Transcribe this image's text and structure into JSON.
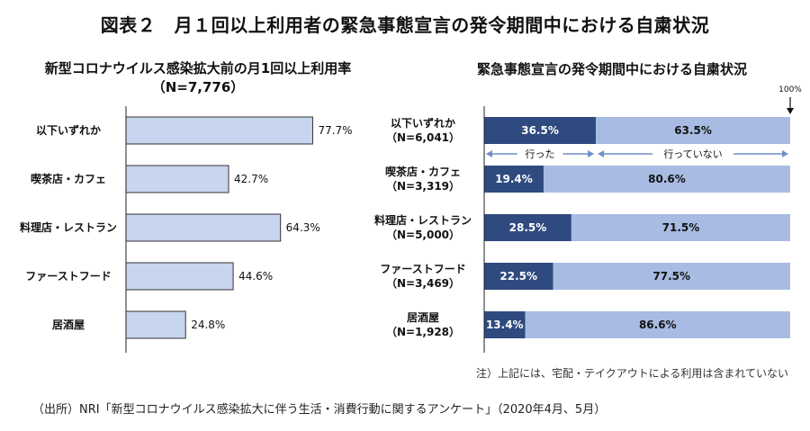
{
  "title": "図表２　月１回以上利用者の緊急事態宣言の発令期間中における自粛状況",
  "note": "注）上記には、宅配・テイクアウトによる利用は含まれていない",
  "source": "（出所）NRI「新型コロナウイルス感染拡大に伴う生活・消費行動に関するアンケート」（2020年4月、5月）",
  "colors": {
    "left_bar": "#c7d5ee",
    "left_bar_border": "#333333",
    "went": "#2f4a7f",
    "not_went": "#a8bce3",
    "arrow": "#6f8fc8"
  },
  "chart_data": [
    {
      "type": "bar",
      "orientation": "horizontal",
      "title": "新型コロナウイルス感染拡大前の月1回以上利用率",
      "subtitle": "（N=7,776）",
      "categories": [
        "以下いずれか",
        "喫茶店・カフェ",
        "料理店・レストラン",
        "ファーストフード",
        "居酒屋"
      ],
      "values": [
        77.7,
        42.7,
        64.3,
        44.6,
        24.8
      ],
      "unit": "%",
      "xlim": [
        0,
        100
      ]
    },
    {
      "type": "bar",
      "orientation": "horizontal",
      "stacked": true,
      "title": "緊急事態宣言の発令期間中における自粛状況",
      "categories": [
        "以下いずれか",
        "喫茶店・カフェ",
        "料理店・レストラン",
        "ファーストフード",
        "居酒屋"
      ],
      "n_labels": [
        "（N=6,041）",
        "（N=3,319）",
        "（N=5,000）",
        "（N=3,469）",
        "（N=1,928）"
      ],
      "series": [
        {
          "name": "行った",
          "values": [
            36.5,
            19.4,
            28.5,
            22.5,
            13.4
          ]
        },
        {
          "name": "行っていない",
          "values": [
            63.5,
            80.6,
            71.5,
            77.5,
            86.6
          ]
        }
      ],
      "unit": "%",
      "xlim": [
        0,
        100
      ],
      "marker_label": "100%"
    }
  ]
}
